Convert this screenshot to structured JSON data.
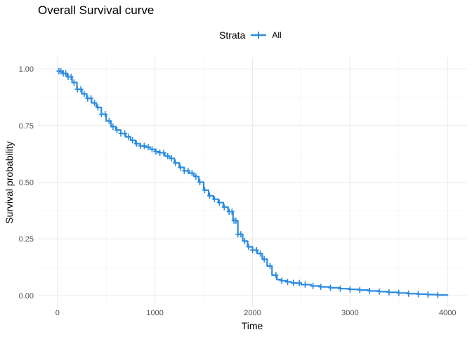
{
  "chart_data": {
    "type": "line",
    "title": "Overall Survival curve",
    "xlabel": "Time",
    "ylabel": "Survival probability",
    "xlim": [
      -200,
      4200
    ],
    "ylim": [
      -0.05,
      1.05
    ],
    "x_ticks": [
      0,
      1000,
      2000,
      3000,
      4000
    ],
    "x_tick_labels": [
      "0",
      "1000",
      "2000",
      "3000",
      "4000"
    ],
    "y_ticks": [
      0,
      0.25,
      0.5,
      0.75,
      1.0
    ],
    "y_tick_labels": [
      "0.00",
      "0.25",
      "0.50",
      "0.75",
      "1.00"
    ],
    "grid": true,
    "legend": {
      "title": "Strata",
      "position": "top-center"
    },
    "series": [
      {
        "name": "All",
        "color": "#2b8cdf",
        "step_x": [
          0,
          50,
          100,
          150,
          200,
          250,
          300,
          350,
          400,
          450,
          500,
          550,
          600,
          650,
          700,
          750,
          800,
          850,
          900,
          950,
          1000,
          1050,
          1100,
          1150,
          1200,
          1250,
          1300,
          1350,
          1400,
          1450,
          1500,
          1550,
          1600,
          1650,
          1700,
          1750,
          1800,
          1850,
          1900,
          1950,
          2000,
          2050,
          2100,
          2150,
          2200,
          2250,
          2300,
          2350,
          2400,
          2500,
          2600,
          2700,
          2800,
          2900,
          3000,
          3100,
          3200,
          3300,
          3400,
          3500,
          3600,
          3700,
          3800,
          3900,
          4000
        ],
        "step_y": [
          0.99,
          0.98,
          0.965,
          0.94,
          0.91,
          0.89,
          0.87,
          0.85,
          0.83,
          0.8,
          0.77,
          0.745,
          0.73,
          0.715,
          0.7,
          0.685,
          0.67,
          0.66,
          0.655,
          0.645,
          0.635,
          0.63,
          0.615,
          0.605,
          0.585,
          0.565,
          0.55,
          0.54,
          0.525,
          0.5,
          0.465,
          0.44,
          0.425,
          0.41,
          0.39,
          0.37,
          0.33,
          0.27,
          0.24,
          0.215,
          0.2,
          0.185,
          0.16,
          0.13,
          0.09,
          0.07,
          0.065,
          0.06,
          0.055,
          0.048,
          0.042,
          0.038,
          0.034,
          0.03,
          0.027,
          0.024,
          0.02,
          0.017,
          0.014,
          0.011,
          0.008,
          0.006,
          0.004,
          0.002,
          0.0
        ],
        "censor_x": [
          15,
          35,
          60,
          85,
          110,
          140,
          170,
          205,
          240,
          275,
          310,
          345,
          380,
          415,
          450,
          490,
          530,
          570,
          610,
          650,
          690,
          730,
          770,
          810,
          850,
          890,
          930,
          970,
          1010,
          1050,
          1090,
          1130,
          1170,
          1210,
          1260,
          1300,
          1340,
          1380,
          1420,
          1460,
          1510,
          1560,
          1610,
          1660,
          1710,
          1760,
          1790,
          1810,
          1830,
          1850,
          1880,
          1920,
          1960,
          2000,
          2040,
          2080,
          2120,
          2180,
          2240,
          2300,
          2360,
          2420,
          2480,
          2540,
          2620,
          2700,
          2800,
          2900,
          3000,
          3100,
          3200,
          3300,
          3400,
          3500,
          3600,
          3700,
          3800,
          3900
        ]
      }
    ]
  }
}
